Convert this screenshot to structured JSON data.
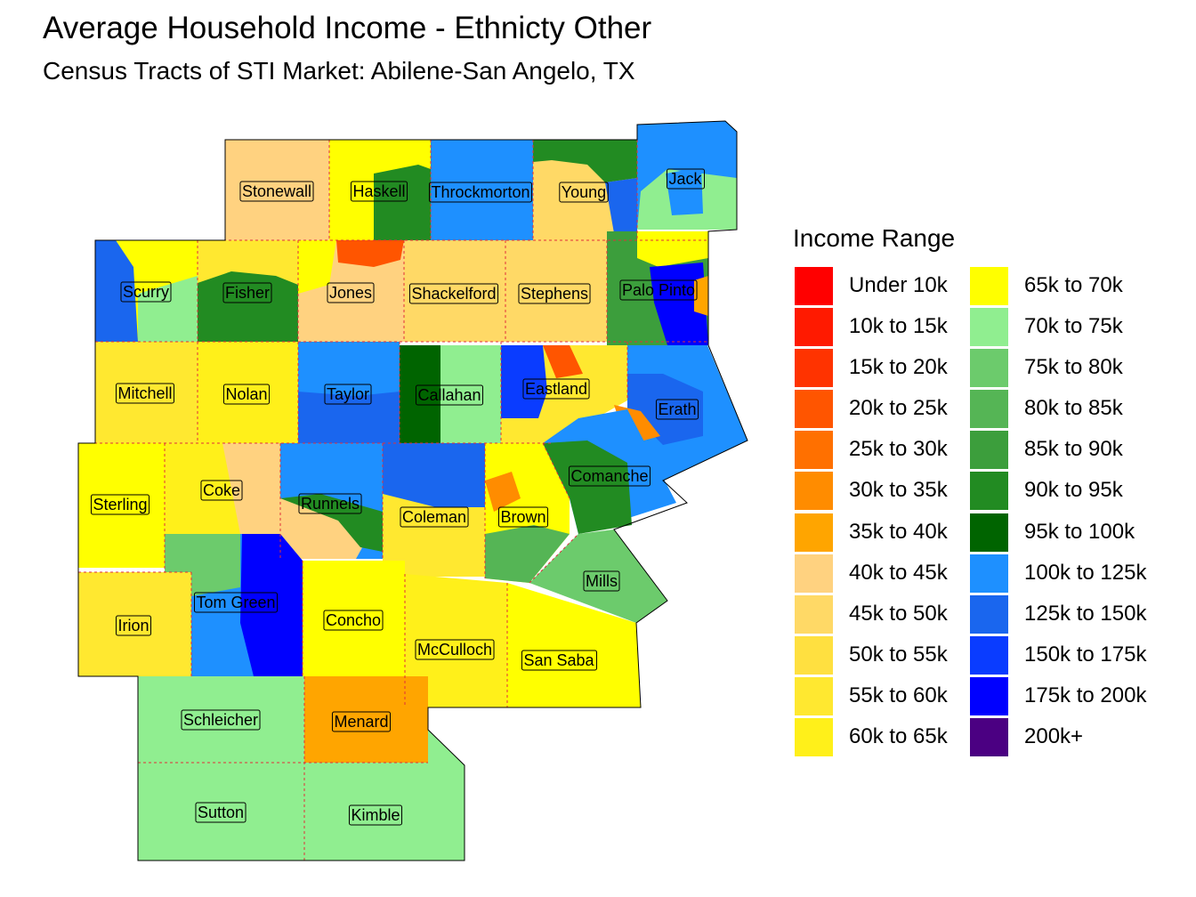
{
  "title": "Average Household Income - Ethnicty Other",
  "subtitle": "Census Tracts of STI Market: Abilene-San Angelo, TX",
  "legend": {
    "title": "Income Range",
    "items": [
      {
        "label": "Under 10k",
        "color": "#FF0000"
      },
      {
        "label": "10k to 15k",
        "color": "#FF1A00"
      },
      {
        "label": "15k to 20k",
        "color": "#FF3300"
      },
      {
        "label": "20k to 25k",
        "color": "#FF5500"
      },
      {
        "label": "25k to 30k",
        "color": "#FF7000"
      },
      {
        "label": "30k to 35k",
        "color": "#FF8C00"
      },
      {
        "label": "35k to 40k",
        "color": "#FFA500"
      },
      {
        "label": "40k to 45k",
        "color": "#FFD280"
      },
      {
        "label": "45k to 50k",
        "color": "#FFD966"
      },
      {
        "label": "50k to 55k",
        "color": "#FFE040"
      },
      {
        "label": "55k to 60k",
        "color": "#FFE830"
      },
      {
        "label": "60k to 65k",
        "color": "#FFF01A"
      },
      {
        "label": "65k to 70k",
        "color": "#FFFF00"
      },
      {
        "label": "70k to 75k",
        "color": "#90EE90"
      },
      {
        "label": "75k to 80k",
        "color": "#6CCB6C"
      },
      {
        "label": "80k to 85k",
        "color": "#55B555"
      },
      {
        "label": "85k to 90k",
        "color": "#3C9E3C"
      },
      {
        "label": "90k to 95k",
        "color": "#228B22"
      },
      {
        "label": "95k to 100k",
        "color": "#006400"
      },
      {
        "label": "100k to 125k",
        "color": "#1E90FF"
      },
      {
        "label": "125k to 150k",
        "color": "#1A66EE"
      },
      {
        "label": "150k to 175k",
        "color": "#0A3CFF"
      },
      {
        "label": "175k to 200k",
        "color": "#0000FF"
      },
      {
        "label": "200k+",
        "color": "#4B0082"
      }
    ]
  },
  "counties": {
    "stonewall": "Stonewall",
    "haskell": "Haskell",
    "throckmorton": "Throckmorton",
    "young": "Young",
    "jack": "Jack",
    "scurry": "Scurry",
    "fisher": "Fisher",
    "jones": "Jones",
    "shackelford": "Shackelford",
    "stephens": "Stephens",
    "palo_pinto": "Palo Pinto",
    "mitchell": "Mitchell",
    "nolan": "Nolan",
    "taylor": "Taylor",
    "callahan": "Callahan",
    "eastland": "Eastland",
    "erath": "Erath",
    "sterling": "Sterling",
    "coke": "Coke",
    "runnels": "Runnels",
    "coleman": "Coleman",
    "brown": "Brown",
    "comanche": "Comanche",
    "mills": "Mills",
    "irion": "Irion",
    "tom_green": "Tom Green",
    "concho": "Concho",
    "mcculloch": "McCulloch",
    "san_saba": "San Saba",
    "schleicher": "Schleicher",
    "menard": "Menard",
    "sutton": "Sutton",
    "kimble": "Kimble"
  }
}
